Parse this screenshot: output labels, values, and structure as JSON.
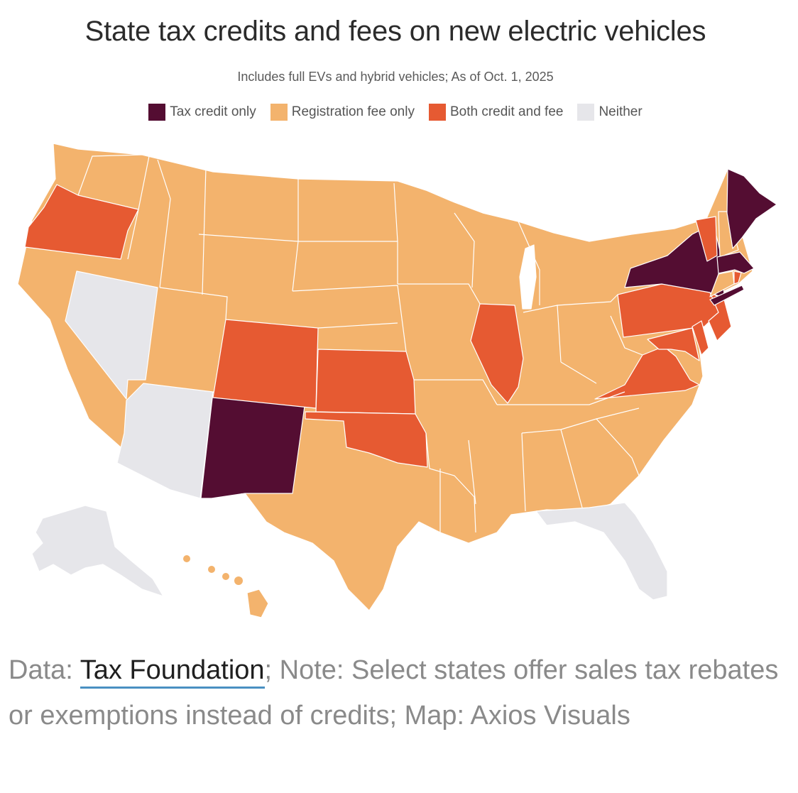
{
  "title": "State tax credits and fees on new electric vehicles",
  "subtitle": "Includes full EVs and hybrid vehicles; As of Oct. 1, 2025",
  "legend": [
    {
      "label": "Tax credit only",
      "color": "#540d32"
    },
    {
      "label": "Registration fee only",
      "color": "#f3b36d"
    },
    {
      "label": "Both credit and fee",
      "color": "#e65a32"
    },
    {
      "label": "Neither",
      "color": "#e6e6ea"
    }
  ],
  "categories": {
    "tax_credit_only": [
      "NM",
      "NY",
      "ME",
      "MA",
      "CT-area"
    ],
    "both_credit_and_fee": [
      "OR",
      "CO",
      "KS",
      "OK",
      "IL",
      "PA",
      "VA",
      "MD",
      "NJ",
      "DE",
      "VT",
      "RI"
    ],
    "neither": [
      "NV",
      "AZ",
      "FL",
      "AK"
    ],
    "registration_fee_only": "all other states"
  },
  "footer": {
    "prefix": "Data: ",
    "source_link": "Tax Foundation",
    "rest": "; Note: Select states offer sales tax rebates or exemptions instead of credits; Map: Axios Visuals"
  }
}
